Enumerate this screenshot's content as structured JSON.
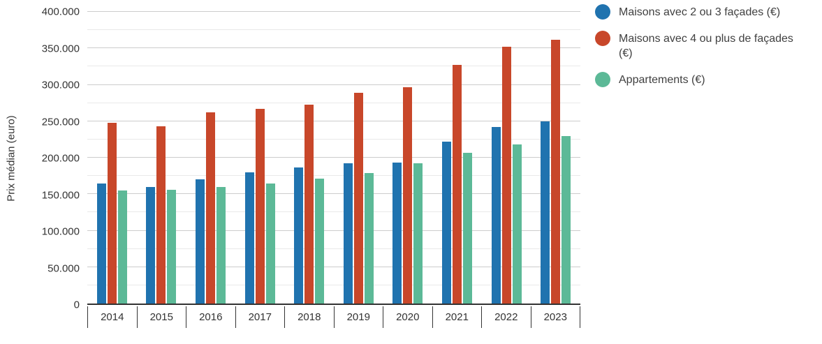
{
  "chart_data": {
    "type": "bar",
    "title": "",
    "xlabel": "",
    "ylabel": "Prix médian (euro)",
    "ylim": [
      0,
      400000
    ],
    "y_tick_step": 50000,
    "y_minor_step": 25000,
    "y_tick_labels": [
      "400.000",
      "350.000",
      "300.000",
      "250.000",
      "200.000",
      "150.000",
      "100.000",
      "50.000",
      "0"
    ],
    "grid": true,
    "legend_position": "top-right",
    "categories": [
      "2014",
      "2015",
      "2016",
      "2017",
      "2018",
      "2019",
      "2020",
      "2021",
      "2022",
      "2023"
    ],
    "series": [
      {
        "name": "Maisons avec 2 ou 3 façades (€)",
        "key": "maisons-2-3-facades",
        "color": "#2073af",
        "values": [
          165000,
          160000,
          170000,
          180000,
          187000,
          192000,
          193000,
          222000,
          242000,
          250000
        ]
      },
      {
        "name": "Maisons avec 4 ou plus de façades (€)",
        "key": "maisons-4-plus-facades",
        "color": "#c8472a",
        "values": [
          248000,
          243000,
          262000,
          267000,
          273000,
          289000,
          297000,
          327000,
          352000,
          362000
        ]
      },
      {
        "name": "Appartements (€)",
        "key": "appartements",
        "color": "#5cb997",
        "values": [
          155000,
          156000,
          160000,
          165000,
          171000,
          179000,
          192000,
          207000,
          218000,
          230000
        ]
      }
    ]
  }
}
